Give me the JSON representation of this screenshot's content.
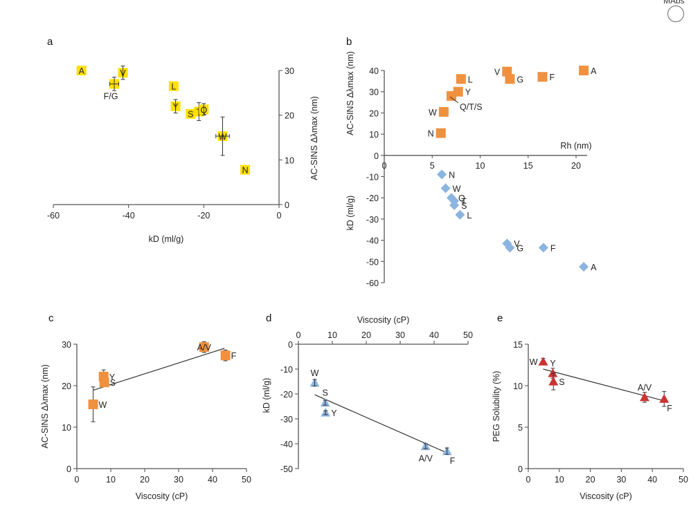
{
  "header": {
    "text": "MAbs",
    "icon": "circular-logo-icon"
  },
  "colors": {
    "yellow": "#ffe000",
    "orange": "#f0913f",
    "blue": "#8cb4e0",
    "red": "#cc3333",
    "axis": "#555555"
  },
  "chart_data": [
    {
      "panel": "a",
      "type": "scatter",
      "xlabel": "kD (ml/g)",
      "ylabel": "AC-SINS Δλmax (nm)",
      "xlim": [
        -60,
        0
      ],
      "ylim": [
        0,
        30
      ],
      "xticks": [
        -60,
        -40,
        -20,
        0
      ],
      "yticks": [
        0,
        10,
        20,
        30
      ],
      "y_axis_side": "right",
      "marker": "square",
      "color": "yellow",
      "points": [
        {
          "label": "A",
          "x": -52.5,
          "y": 30,
          "xerr": 0,
          "yerr": 0
        },
        {
          "label": "V",
          "x": -41.5,
          "y": 29.5,
          "xerr": 0,
          "yerr": 1.5
        },
        {
          "label": "F/G",
          "x": -43.8,
          "y": 27,
          "xerr": 1.2,
          "yerr": 1.5,
          "label_pos": "below"
        },
        {
          "label": "L",
          "x": -28,
          "y": 26.5,
          "xerr": 0,
          "yerr": 0
        },
        {
          "label": "Y",
          "x": -27.5,
          "y": 22,
          "xerr": 0,
          "yerr": 1.5
        },
        {
          "label": "S",
          "x": -23.5,
          "y": 20.3,
          "xerr": 0,
          "yerr": 0
        },
        {
          "label": "T",
          "x": -21.3,
          "y": 20.8,
          "xerr": 0,
          "yerr": 2
        },
        {
          "label": "Q",
          "x": -20,
          "y": 21.3,
          "xerr": 0,
          "yerr": 1.3
        },
        {
          "label": "W",
          "x": -15,
          "y": 15.3,
          "xerr": 1.8,
          "yerr": 4.3
        },
        {
          "label": "N",
          "x": -9,
          "y": 7.8,
          "xerr": 0,
          "yerr": 0
        }
      ]
    },
    {
      "panel": "b",
      "type": "scatter",
      "xlabel": "Rh (nm)",
      "ylabel_top": "AC-SINS Δλmax (nm)",
      "ylabel_bottom": "kD (ml/g)",
      "xlim": [
        0,
        22
      ],
      "ylim": [
        -60,
        40
      ],
      "xticks": [
        0,
        5,
        10,
        15,
        20
      ],
      "yticks": [
        -60,
        -50,
        -40,
        -30,
        -20,
        -10,
        0,
        10,
        20,
        30,
        40
      ],
      "series": [
        {
          "name": "AC-SINS Δλmax",
          "marker": "square",
          "color": "orange",
          "points": [
            {
              "label": "A",
              "x": 20.8,
              "y": 40
            },
            {
              "label": "V",
              "x": 12.8,
              "y": 39.5,
              "label_pos": "left"
            },
            {
              "label": "G",
              "x": 13.1,
              "y": 36
            },
            {
              "label": "F",
              "x": 16.5,
              "y": 37
            },
            {
              "label": "L",
              "x": 8.0,
              "y": 36
            },
            {
              "label": "Y",
              "x": 7.7,
              "y": 30
            },
            {
              "label": "Q/T/S",
              "x": 7.0,
              "y": 28,
              "label_pos": "below-right"
            },
            {
              "label": "W",
              "x": 6.2,
              "y": 20.5,
              "label_pos": "left"
            },
            {
              "label": "N",
              "x": 5.9,
              "y": 10.5,
              "label_pos": "left"
            }
          ]
        },
        {
          "name": "kD",
          "marker": "diamond",
          "color": "blue",
          "points": [
            {
              "label": "N",
              "x": 6.0,
              "y": -9
            },
            {
              "label": "W",
              "x": 6.4,
              "y": -15.5
            },
            {
              "label": "Q",
              "x": 7.0,
              "y": -20
            },
            {
              "label": "T",
              "x": 7.3,
              "y": -21.5
            },
            {
              "label": "S",
              "x": 7.3,
              "y": -23.5
            },
            {
              "label": "L",
              "x": 7.9,
              "y": -28
            },
            {
              "label": "V",
              "x": 12.8,
              "y": -41.5
            },
            {
              "label": "G",
              "x": 13.1,
              "y": -43.5
            },
            {
              "label": "F",
              "x": 16.6,
              "y": -43.5
            },
            {
              "label": "A",
              "x": 20.8,
              "y": -52.5
            }
          ]
        }
      ]
    },
    {
      "panel": "c",
      "type": "scatter",
      "xlabel": "Viscosity (cP)",
      "ylabel": "AC-SINS Δλmax (nm)",
      "xlim": [
        0,
        50
      ],
      "ylim": [
        0,
        30
      ],
      "xticks": [
        0,
        10,
        20,
        30,
        40,
        50
      ],
      "yticks": [
        0,
        10,
        20,
        30
      ],
      "marker": "square",
      "color": "orange",
      "fit_line": {
        "x": [
          4.8,
          43.5
        ],
        "y": [
          18.9,
          29.0
        ]
      },
      "points": [
        {
          "label": "W",
          "x": 4.8,
          "y": 15.5,
          "yerr": 4.2
        },
        {
          "label": "Y",
          "x": 7.9,
          "y": 22.2,
          "yerr": 1.6
        },
        {
          "label": "S",
          "x": 8.1,
          "y": 20.8,
          "yerr": 0
        },
        {
          "label": "A/V",
          "x": 37.5,
          "y": 29.3,
          "yerr": 1.3,
          "label_pos": "center"
        },
        {
          "label": "F",
          "x": 43.8,
          "y": 27.3,
          "yerr": 1.3
        }
      ]
    },
    {
      "panel": "d",
      "type": "scatter",
      "xlabel": "Viscosity (cP)",
      "ylabel": "kD (ml/g)",
      "xlim": [
        0,
        50
      ],
      "ylim": [
        -50,
        0
      ],
      "xticks": [
        0,
        10,
        20,
        30,
        40,
        50
      ],
      "yticks": [
        -50,
        -40,
        -30,
        -20,
        -10,
        0
      ],
      "x_axis_side": "top",
      "marker": "triangle",
      "color": "blue",
      "fit_line": {
        "x": [
          4.8,
          43.5
        ],
        "y": [
          -20.3,
          -43.5
        ]
      },
      "points": [
        {
          "label": "W",
          "x": 4.8,
          "y": -15.5,
          "yerr": 1.3,
          "label_pos": "above"
        },
        {
          "label": "S",
          "x": 7.9,
          "y": -23.5,
          "yerr": 1,
          "label_pos": "above"
        },
        {
          "label": "Y",
          "x": 8.0,
          "y": -27.5,
          "yerr": 0.8
        },
        {
          "label": "A/V",
          "x": 37.5,
          "y": -41,
          "yerr": 1,
          "label_pos": "below"
        },
        {
          "label": "F",
          "x": 43.8,
          "y": -43,
          "yerr": 1.3,
          "label_pos": "below-right"
        }
      ]
    },
    {
      "panel": "e",
      "type": "scatter",
      "xlabel": "Viscosity (cP)",
      "ylabel": "PEG Solubility (%)",
      "xlim": [
        0,
        50
      ],
      "ylim": [
        0,
        15
      ],
      "xticks": [
        0,
        10,
        20,
        30,
        40,
        50
      ],
      "yticks": [
        0,
        5,
        10,
        15
      ],
      "marker": "triangle",
      "color": "red",
      "fit_line": {
        "x": [
          4.8,
          43.5
        ],
        "y": [
          12.0,
          8.2
        ]
      },
      "points": [
        {
          "label": "W",
          "x": 4.8,
          "y": 12.9,
          "yerr": 0.4,
          "label_pos": "left"
        },
        {
          "label": "Y",
          "x": 7.9,
          "y": 11.5,
          "yerr": 0.6,
          "label_pos": "above"
        },
        {
          "label": "S",
          "x": 8.1,
          "y": 10.5,
          "yerr": 1.0
        },
        {
          "label": "A/V",
          "x": 37.5,
          "y": 8.6,
          "yerr": 0.6,
          "label_pos": "above"
        },
        {
          "label": "F",
          "x": 43.8,
          "y": 8.4,
          "yerr": 0.9,
          "label_pos": "below-right"
        }
      ]
    }
  ]
}
